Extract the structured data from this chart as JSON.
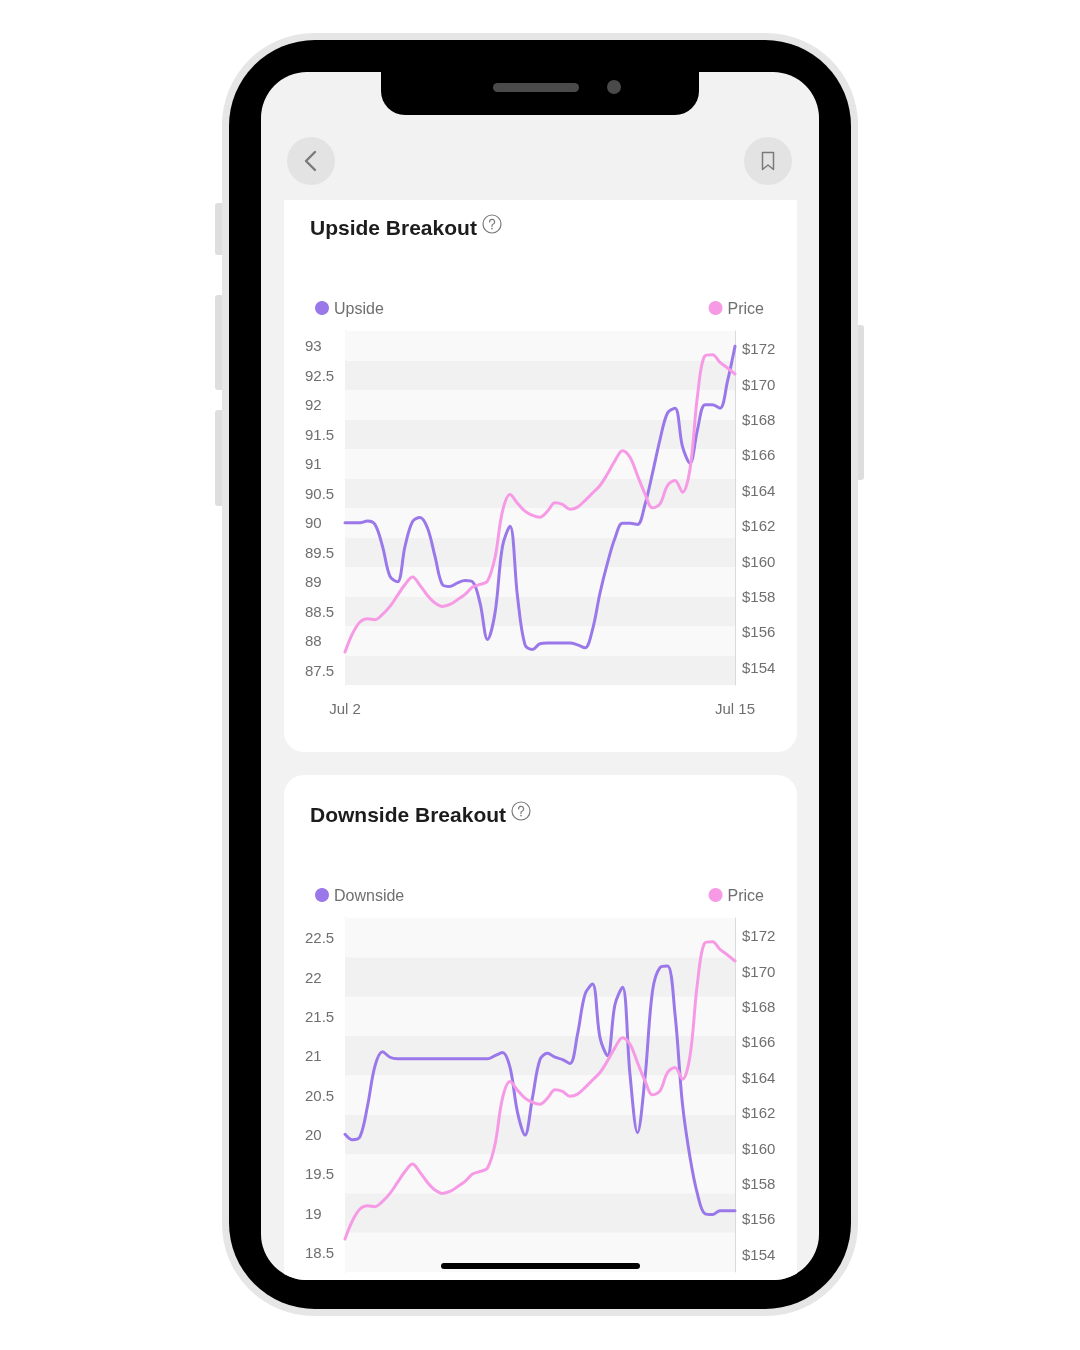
{
  "chart_data": [
    {
      "type": "line",
      "title": "Upside Breakout",
      "categories": [
        "Jul 2",
        null,
        null,
        null,
        null,
        null,
        null,
        null,
        null,
        null,
        null,
        null,
        null,
        null,
        null,
        null,
        null,
        null,
        null,
        null,
        null,
        null,
        null,
        null,
        null,
        null,
        null,
        null,
        null,
        null,
        null,
        null,
        null,
        null,
        null,
        null,
        null,
        null,
        null,
        null,
        null,
        null,
        null,
        null,
        null,
        null,
        null,
        null,
        null,
        null,
        null,
        null,
        "Jul 15"
      ],
      "series": [
        {
          "name": "Upside",
          "color": "#9a78ea",
          "values": [
            90,
            90,
            90,
            90.03,
            89.97,
            89.6,
            89.09,
            89.0,
            89.6,
            90.02,
            90.09,
            89.91,
            89.43,
            88.95,
            88.92,
            88.98,
            89.02,
            89.0,
            88.64,
            88.02,
            88.47,
            89.6,
            89.94,
            88.75,
            87.93,
            87.85,
            87.95,
            87.96,
            87.96,
            87.96,
            87.96,
            87.93,
            87.88,
            88.19,
            88.81,
            89.32,
            89.74,
            89.99,
            89.99,
            89.97,
            90.31,
            90.84,
            91.41,
            91.86,
            91.94,
            91.29,
            91.01,
            91.58,
            92.0,
            92.0,
            91.94,
            92.4,
            92.99
          ]
        },
        {
          "name": "Price",
          "color": "#f69ae6",
          "axis": "y2",
          "values": [
            154.86,
            155.9,
            156.56,
            156.74,
            156.69,
            156.99,
            157.44,
            158.06,
            158.68,
            159.1,
            158.63,
            158.06,
            157.63,
            157.44,
            157.55,
            157.82,
            158.12,
            158.53,
            158.68,
            158.87,
            160.2,
            162.82,
            163.76,
            163.27,
            162.82,
            162.58,
            162.48,
            162.82,
            163.29,
            163.2,
            162.93,
            163.05,
            163.42,
            163.84,
            164.27,
            164.93,
            165.68,
            166.24,
            165.87,
            164.83,
            163.8,
            163.01,
            163.23,
            164.27,
            164.55,
            163.89,
            165.2,
            169.35,
            171.6,
            171.66,
            171.23,
            170.91,
            170.57
          ]
        }
      ],
      "ylim": [
        87.25,
        93.25
      ],
      "yticks": [
        87.5,
        88,
        88.5,
        89,
        89.5,
        90,
        90.5,
        91,
        91.5,
        92,
        92.5,
        93
      ],
      "y2lim": [
        153,
        173
      ],
      "y2ticks": [
        {
          "value": 154,
          "label": "$154"
        },
        {
          "value": 156,
          "label": "$156"
        },
        {
          "value": 158,
          "label": "$158"
        },
        {
          "value": 160,
          "label": "$160"
        },
        {
          "value": 162,
          "label": "$162"
        },
        {
          "value": 164,
          "label": "$164"
        },
        {
          "value": 166,
          "label": "$166"
        },
        {
          "value": 168,
          "label": "$168"
        },
        {
          "value": 170,
          "label": "$170"
        },
        {
          "value": 172,
          "label": "$172"
        }
      ],
      "bands": [
        {
          "axis": "y",
          "from": 87.25,
          "to": 87.75,
          "color": "#f1f1f1"
        },
        {
          "axis": "y",
          "from": 87.75,
          "to": 88.25,
          "color": "#f9f9f9"
        },
        {
          "axis": "y",
          "from": 88.25,
          "to": 88.75,
          "color": "#f1f1f1"
        },
        {
          "axis": "y",
          "from": 88.75,
          "to": 89.25,
          "color": "#f9f9f9"
        },
        {
          "axis": "y",
          "from": 89.25,
          "to": 89.75,
          "color": "#f1f1f1"
        },
        {
          "axis": "y",
          "from": 89.75,
          "to": 90.25,
          "color": "#f9f9f9"
        },
        {
          "axis": "y",
          "from": 90.25,
          "to": 90.75,
          "color": "#f1f1f1"
        },
        {
          "axis": "y",
          "from": 90.75,
          "to": 91.25,
          "color": "#f9f9f9"
        },
        {
          "axis": "y",
          "from": 91.25,
          "to": 91.75,
          "color": "#f1f1f1"
        },
        {
          "axis": "y",
          "from": 91.75,
          "to": 92.25,
          "color": "#f9f9f9"
        },
        {
          "axis": "y",
          "from": 92.25,
          "to": 92.75,
          "color": "#f1f1f1"
        },
        {
          "axis": "y",
          "from": 92.75,
          "to": 93.25,
          "color": "#f9f9f9"
        }
      ],
      "legend": "top",
      "marker": "none"
    },
    {
      "type": "line",
      "title": "Downside Breakout",
      "categories": [
        null,
        null,
        null,
        null,
        null,
        null,
        null,
        null,
        null,
        null,
        null,
        null,
        null,
        null,
        null,
        null,
        null,
        null,
        null,
        null,
        null,
        null,
        null,
        null,
        null,
        null,
        null,
        null,
        null,
        null,
        null,
        null,
        null,
        null,
        null,
        null,
        null,
        null,
        null,
        null,
        null,
        null,
        null,
        null,
        null,
        null,
        null,
        null,
        null,
        null,
        null,
        null,
        null
      ],
      "series": [
        {
          "name": "Downside",
          "color": "#9a78ea",
          "values": [
            20.0,
            19.93,
            19.97,
            20.36,
            20.87,
            21.05,
            20.98,
            20.96,
            20.96,
            20.96,
            20.96,
            20.96,
            20.96,
            20.96,
            20.96,
            20.96,
            20.96,
            20.96,
            20.96,
            20.96,
            21.0,
            21.04,
            20.85,
            20.28,
            19.99,
            20.47,
            20.95,
            21.03,
            20.98,
            20.95,
            20.9,
            21.27,
            21.78,
            21.91,
            21.23,
            21.0,
            21.65,
            21.87,
            20.76,
            20.02,
            20.72,
            21.82,
            22.12,
            22.14,
            21.53,
            20.38,
            19.71,
            19.24,
            18.99,
            18.98,
            19.03,
            19.03,
            19.03
          ]
        },
        {
          "name": "Price",
          "color": "#f69ae6",
          "axis": "y2",
          "values": [
            154.86,
            155.9,
            156.56,
            156.74,
            156.69,
            156.99,
            157.44,
            158.06,
            158.68,
            159.1,
            158.63,
            158.06,
            157.63,
            157.44,
            157.55,
            157.82,
            158.12,
            158.53,
            158.68,
            158.87,
            160.2,
            162.82,
            163.76,
            163.27,
            162.82,
            162.58,
            162.48,
            162.82,
            163.29,
            163.2,
            162.93,
            163.05,
            163.42,
            163.84,
            164.27,
            164.93,
            165.68,
            166.24,
            165.87,
            164.83,
            163.8,
            163.01,
            163.23,
            164.27,
            164.55,
            163.89,
            165.2,
            169.35,
            171.6,
            171.66,
            171.23,
            170.91,
            170.57
          ]
        }
      ],
      "ylim": [
        18.25,
        22.75
      ],
      "yticks": [
        18.5,
        19,
        19.5,
        20,
        20.5,
        21,
        21.5,
        22,
        22.5
      ],
      "y2lim": [
        153,
        173
      ],
      "y2ticks": [
        {
          "value": 154,
          "label": "$154"
        },
        {
          "value": 156,
          "label": "$156"
        },
        {
          "value": 158,
          "label": "$158"
        },
        {
          "value": 160,
          "label": "$160"
        },
        {
          "value": 162,
          "label": "$162"
        },
        {
          "value": 164,
          "label": "$164"
        },
        {
          "value": 166,
          "label": "$166"
        },
        {
          "value": 168,
          "label": "$168"
        },
        {
          "value": 170,
          "label": "$170"
        },
        {
          "value": 172,
          "label": "$172"
        }
      ],
      "bands": [
        {
          "axis": "y",
          "from": 18.25,
          "to": 18.75,
          "color": "#f9f9f9"
        },
        {
          "axis": "y",
          "from": 18.75,
          "to": 19.25,
          "color": "#f1f1f1"
        },
        {
          "axis": "y",
          "from": 19.25,
          "to": 19.75,
          "color": "#f9f9f9"
        },
        {
          "axis": "y",
          "from": 19.75,
          "to": 20.25,
          "color": "#f1f1f1"
        },
        {
          "axis": "y",
          "from": 20.25,
          "to": 20.75,
          "color": "#f9f9f9"
        },
        {
          "axis": "y",
          "from": 20.75,
          "to": 21.25,
          "color": "#f1f1f1"
        },
        {
          "axis": "y",
          "from": 21.25,
          "to": 21.75,
          "color": "#f9f9f9"
        },
        {
          "axis": "y",
          "from": 21.75,
          "to": 22.25,
          "color": "#f1f1f1"
        },
        {
          "axis": "y",
          "from": 22.25,
          "to": 22.75,
          "color": "#f9f9f9"
        }
      ],
      "legend": "top",
      "marker": "none",
      "tick_labels": "y"
    }
  ]
}
